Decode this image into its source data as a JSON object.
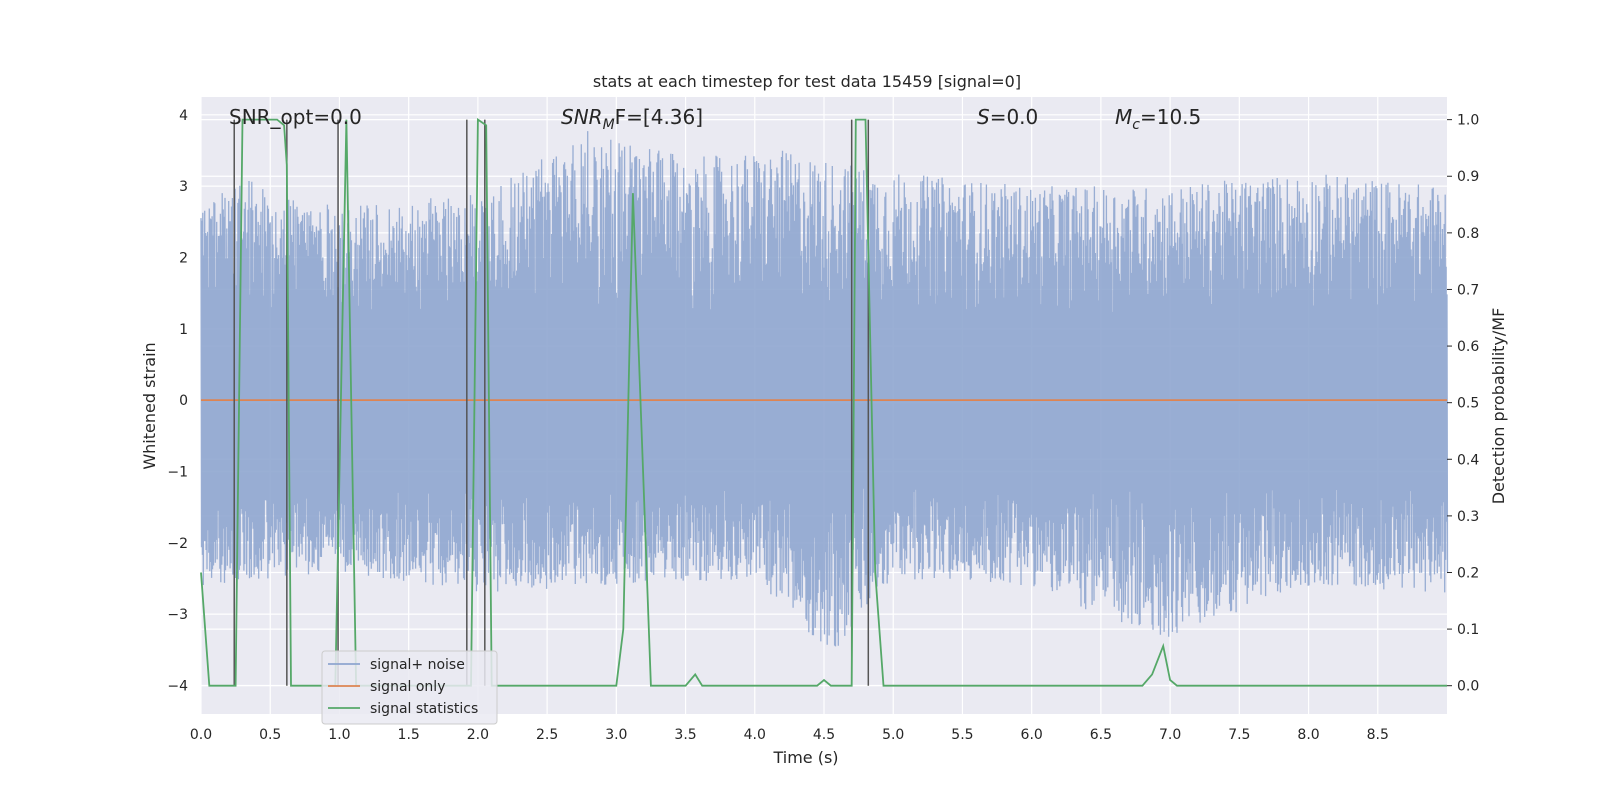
{
  "chart_data": {
    "type": "line",
    "title": "stats at each timestep for test data 15459 [signal=0]",
    "xlabel": "Time (s)",
    "ylabel": "Whitened strain",
    "ylabel_right": "Detection probability/MF",
    "xlim": [
      0.0,
      9.0
    ],
    "ylim": [
      -4.4,
      4.25
    ],
    "ylim_right": [
      -0.05,
      1.04
    ],
    "x_ticks": [
      "0.0",
      "0.5",
      "1.0",
      "1.5",
      "2.0",
      "2.5",
      "3.0",
      "3.5",
      "4.0",
      "4.5",
      "5.0",
      "5.5",
      "6.0",
      "6.5",
      "7.0",
      "7.5",
      "8.0",
      "8.5"
    ],
    "y_ticks": [
      "−4",
      "−3",
      "−2",
      "−1",
      "0",
      "1",
      "2",
      "3",
      "4"
    ],
    "y_ticks_right": [
      "0.0",
      "0.1",
      "0.2",
      "0.3",
      "0.4",
      "0.5",
      "0.6",
      "0.7",
      "0.8",
      "0.9",
      "1.0"
    ],
    "grid": true,
    "legend_position": "lower-left",
    "annotations": {
      "snr_opt": "SNR_opt=0.0",
      "snr_mf_base": "SNR",
      "snr_mf_sub": "M",
      "snr_mf_rest": "F=[4.36]",
      "s_var": "S",
      "s_rest": "=0.0",
      "mc_base": "M",
      "mc_sub": "c",
      "mc_rest": "=10.5"
    },
    "series": [
      {
        "name": "signal+ noise",
        "axis": "left",
        "color": "#8fa6cf",
        "noise_style": true,
        "envelope_hi": [
          [
            0,
            2.7
          ],
          [
            0.3,
            3.1
          ],
          [
            1.0,
            2.7
          ],
          [
            2.0,
            2.9
          ],
          [
            2.8,
            3.8
          ],
          [
            3.5,
            3.4
          ],
          [
            4.2,
            3.5
          ],
          [
            5.0,
            3.2
          ],
          [
            6.0,
            3.0
          ],
          [
            7.0,
            3.0
          ],
          [
            8.0,
            3.2
          ],
          [
            9.0,
            3.0
          ]
        ],
        "envelope_lo": [
          [
            0,
            -2.6
          ],
          [
            1.0,
            -2.4
          ],
          [
            2.0,
            -2.7
          ],
          [
            3.0,
            -2.6
          ],
          [
            4.0,
            -2.5
          ],
          [
            4.55,
            -3.6
          ],
          [
            5.0,
            -2.5
          ],
          [
            6.0,
            -2.6
          ],
          [
            6.9,
            -3.4
          ],
          [
            8.0,
            -2.6
          ],
          [
            9.0,
            -2.7
          ]
        ]
      },
      {
        "name": "signal only",
        "axis": "left",
        "color": "#dd8452",
        "points": [
          [
            0,
            0
          ],
          [
            9,
            0
          ]
        ]
      },
      {
        "name": "signal statistics",
        "axis": "right",
        "color": "#55a868",
        "points": [
          [
            0,
            0.2
          ],
          [
            0.06,
            0.0
          ],
          [
            0.25,
            0.0
          ],
          [
            0.3,
            1.0
          ],
          [
            0.55,
            1.0
          ],
          [
            0.6,
            0.99
          ],
          [
            0.62,
            0.92
          ],
          [
            0.65,
            0.0
          ],
          [
            0.97,
            0.0
          ],
          [
            1.05,
            1.0
          ],
          [
            1.12,
            0.0
          ],
          [
            1.95,
            0.0
          ],
          [
            2.0,
            1.0
          ],
          [
            2.06,
            0.99
          ],
          [
            2.1,
            0.0
          ],
          [
            2.3,
            0.0
          ],
          [
            2.5,
            0.0
          ],
          [
            3.0,
            0.0
          ],
          [
            3.05,
            0.1
          ],
          [
            3.12,
            0.87
          ],
          [
            3.25,
            0.0
          ],
          [
            3.5,
            0.0
          ],
          [
            3.57,
            0.02
          ],
          [
            3.62,
            0.0
          ],
          [
            4.45,
            0.0
          ],
          [
            4.5,
            0.01
          ],
          [
            4.55,
            0.0
          ],
          [
            4.7,
            0.0
          ],
          [
            4.73,
            1.0
          ],
          [
            4.8,
            1.0
          ],
          [
            4.87,
            0.2
          ],
          [
            4.93,
            0.0
          ],
          [
            6.8,
            0.0
          ],
          [
            6.87,
            0.02
          ],
          [
            6.95,
            0.07
          ],
          [
            7.0,
            0.01
          ],
          [
            7.05,
            0.0
          ],
          [
            9.0,
            0.0
          ]
        ]
      }
    ],
    "event_lines_x": [
      0.24,
      0.62,
      0.99,
      1.92,
      2.05,
      4.7,
      4.82
    ],
    "event_line_color": "#555555"
  }
}
